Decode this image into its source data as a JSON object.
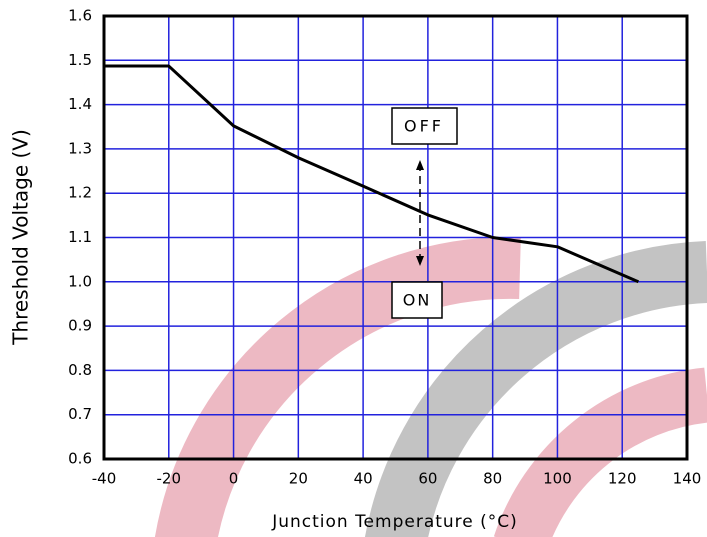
{
  "chart_data": {
    "type": "line",
    "x_label": "Junction Temperature (°C)",
    "y_label": "Threshold Voltage (V)",
    "x": [
      -40,
      -20,
      0,
      20,
      40,
      60,
      80,
      100,
      125
    ],
    "series": [
      {
        "color": "#000000",
        "values": [
          1.487,
          1.487,
          1.352,
          1.28,
          1.216,
          1.151,
          1.1,
          1.079,
          1.0
        ]
      }
    ],
    "xlim": [
      -40,
      140
    ],
    "xticks": [
      -40,
      -20,
      0,
      20,
      40,
      60,
      80,
      100,
      120,
      140
    ],
    "ylim": [
      0.6,
      1.6
    ],
    "yticks": [
      0.6,
      0.7,
      0.8,
      0.9,
      {
        "value": 1,
        "label": "1.0"
      },
      1.1,
      1.2,
      1.3,
      1.4,
      1.5,
      1.6
    ],
    "grid": true,
    "grid_color": "#2222dd",
    "annotations": [
      "OFF",
      "ON"
    ]
  }
}
